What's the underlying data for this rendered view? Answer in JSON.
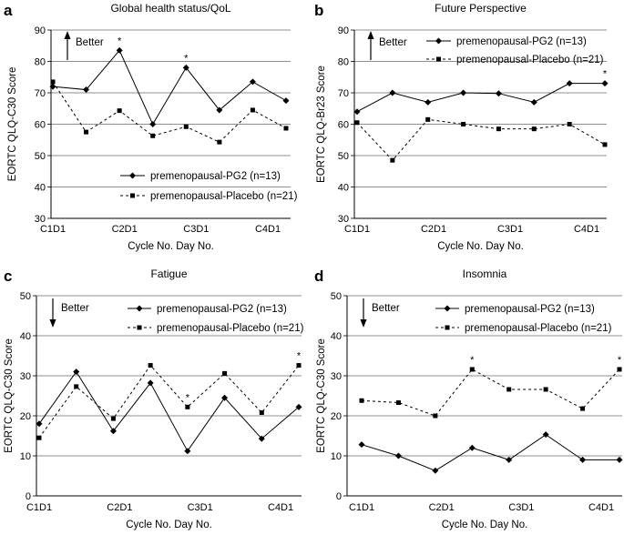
{
  "chart_data": [
    {
      "panel_letter": "a",
      "type": "line",
      "title": "Global health status/QoL",
      "xlabel": "Cycle No. Day No.",
      "ylabel": "EORTC QLQ-C30 Score",
      "ylim": [
        30,
        90
      ],
      "yticks": [
        "30",
        "40",
        "50",
        "60",
        "70",
        "80",
        "90"
      ],
      "grid": true,
      "x_ticks": [
        "C1D1",
        "C2D1",
        "C3D1",
        "C4D1"
      ],
      "better": {
        "label": "Better",
        "arrow": "up"
      },
      "legend_position": "bottom-right",
      "series": [
        {
          "name": "premenopausal-PG2 (n=13)",
          "style": "solid",
          "marker": "diamond",
          "values": [
            72,
            71,
            83.5,
            60,
            78,
            64.5,
            73.5,
            67.5
          ]
        },
        {
          "name": "premenopausal-Placebo (n=21)",
          "style": "dashed",
          "marker": "square",
          "values": [
            73.5,
            57.5,
            64.3,
            56.3,
            59.2,
            54.3,
            64.5,
            58.7
          ]
        }
      ],
      "asterisks": [
        2,
        4
      ]
    },
    {
      "panel_letter": "b",
      "type": "line",
      "title": "Future Perspective",
      "xlabel": "Cycle No. Day No.",
      "ylabel": "EORTC QLQ-Br23 Score",
      "ylim": [
        30,
        90
      ],
      "yticks": [
        "30",
        "40",
        "50",
        "60",
        "70",
        "80",
        "90"
      ],
      "grid": true,
      "x_ticks": [
        "C1D1",
        "C2D1",
        "C3D1",
        "C4D1"
      ],
      "better": {
        "label": "Better",
        "arrow": "up"
      },
      "legend_position": "top-right",
      "series": [
        {
          "name": "premenopausal-PG2 (n=13)",
          "style": "solid",
          "marker": "diamond",
          "values": [
            64,
            70,
            67,
            70,
            69.8,
            67,
            73,
            73
          ]
        },
        {
          "name": "premenopausal-Placebo (n=21)",
          "style": "dashed",
          "marker": "square",
          "values": [
            60.5,
            48.5,
            61.5,
            60,
            58.5,
            58.5,
            60,
            53.5
          ]
        }
      ],
      "asterisks": [
        7
      ]
    },
    {
      "panel_letter": "c",
      "type": "line",
      "title": "Fatigue",
      "xlabel": "Cycle No. Day No.",
      "ylabel": "EORTC QLQ-C30 Score",
      "ylim": [
        0,
        50
      ],
      "yticks": [
        "0",
        "10",
        "20",
        "30",
        "40",
        "50"
      ],
      "grid": true,
      "x_ticks": [
        "C1D1",
        "C2D1",
        "C3D1",
        "C4D1"
      ],
      "better": {
        "label": "Better",
        "arrow": "down"
      },
      "legend_position": "top-right",
      "series": [
        {
          "name": "premenopausal-PG2 (n=13)",
          "style": "solid",
          "marker": "diamond",
          "values": [
            18,
            31,
            16.2,
            28.2,
            11.2,
            24.5,
            14.3,
            22.2
          ]
        },
        {
          "name": "premenopausal-Placebo (n=21)",
          "style": "dashed",
          "marker": "square",
          "values": [
            14.5,
            27.3,
            19.3,
            32.6,
            22.2,
            30.6,
            20.8,
            32.6
          ]
        }
      ],
      "asterisks": [
        4,
        7
      ]
    },
    {
      "panel_letter": "d",
      "type": "line",
      "title": "Insomnia",
      "xlabel": "Cycle No. Day No.",
      "ylabel": "EORTC QLQ-C30 Score",
      "ylim": [
        0,
        50
      ],
      "yticks": [
        "0",
        "10",
        "20",
        "30",
        "40",
        "50"
      ],
      "grid": true,
      "x_ticks": [
        "C1D1",
        "C2D1",
        "C3D1",
        "C4D1"
      ],
      "better": {
        "label": "Better",
        "arrow": "down"
      },
      "legend_position": "top-right",
      "series": [
        {
          "name": "premenopausal-PG2 (n=13)",
          "style": "solid",
          "marker": "diamond",
          "values": [
            12.8,
            10,
            6.3,
            12,
            9,
            15.3,
            9,
            9
          ]
        },
        {
          "name": "premenopausal-Placebo (n=21)",
          "style": "dashed",
          "marker": "square",
          "values": [
            23.8,
            23.3,
            20,
            31.6,
            26.6,
            26.6,
            21.8,
            31.6
          ]
        }
      ],
      "asterisks": [
        3,
        7
      ]
    }
  ]
}
